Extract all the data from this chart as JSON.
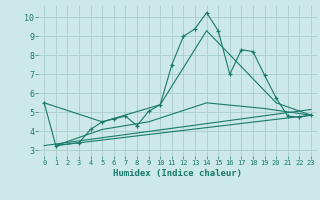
{
  "xlabel": "Humidex (Indice chaleur)",
  "bg_color": "#cce8e8",
  "grid_color": "#aacccc",
  "line_color": "#1a7a6a",
  "xlim": [
    -0.5,
    23.5
  ],
  "ylim": [
    2.7,
    10.6
  ],
  "yticks": [
    3,
    4,
    5,
    6,
    7,
    8,
    9,
    10
  ],
  "xticks": [
    0,
    1,
    2,
    3,
    4,
    5,
    6,
    7,
    8,
    9,
    10,
    11,
    12,
    13,
    14,
    15,
    16,
    17,
    18,
    19,
    20,
    21,
    22,
    23
  ],
  "series1_x": [
    0,
    1,
    3,
    4,
    5,
    6,
    7,
    8,
    9,
    10,
    11,
    12,
    13,
    14,
    15,
    16,
    17,
    18,
    19,
    20,
    21,
    22,
    23
  ],
  "series1_y": [
    5.5,
    3.25,
    3.4,
    4.1,
    4.5,
    4.65,
    4.8,
    4.3,
    5.05,
    5.4,
    7.5,
    9.0,
    9.4,
    10.25,
    9.3,
    7.0,
    8.3,
    8.2,
    6.95,
    5.75,
    4.8,
    4.75,
    4.85
  ],
  "trend1_x": [
    1,
    23
  ],
  "trend1_y": [
    3.25,
    4.85
  ],
  "trend2_x": [
    0,
    23
  ],
  "trend2_y": [
    3.25,
    5.15
  ],
  "trend3_x": [
    1,
    5,
    9,
    14,
    19,
    23
  ],
  "trend3_y": [
    3.25,
    4.1,
    4.5,
    5.5,
    5.2,
    4.85
  ],
  "trend4_x": [
    0,
    5,
    10,
    14,
    20,
    23
  ],
  "trend4_y": [
    5.5,
    4.5,
    5.4,
    9.3,
    5.5,
    4.85
  ]
}
